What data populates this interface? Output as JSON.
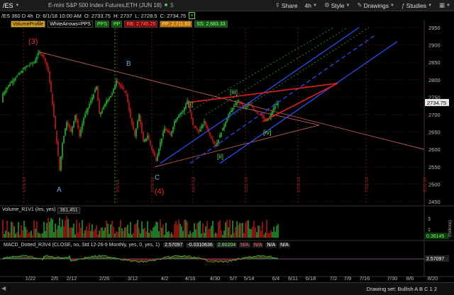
{
  "toolbar": {
    "symbol": "/ES",
    "description": "E-mini S&P 500 Index Futures,ETH (JUN 18)",
    "share": "Share",
    "period": "4h",
    "style": "Style",
    "drawings": "Drawings",
    "studies": "Studies"
  },
  "infobar": {
    "chart_label": "/ES 360 D 4h",
    "date": "D: 6/1/18 10:00 AM",
    "open": "O: 2733.75",
    "high": "H: 2737",
    "low": "L: 2728.5",
    "close": "C: 2734.75"
  },
  "tags": [
    {
      "text": "VolumeProfile",
      "bg": "#d4a017",
      "fg": "#000"
    },
    {
      "text": "WhiteArrows=PPS",
      "bg": "#000",
      "fg": "#ffffff"
    },
    {
      "text": "PPS",
      "bg": "#0a5a0a",
      "fg": "#7cfc7c"
    },
    {
      "text": "PP",
      "bg": "#0a5a0a",
      "fg": "#7cfc7c"
    },
    {
      "text": "RB: 2,745.25",
      "bg": "#8a0000",
      "fg": "#ff8080"
    },
    {
      "text": "PP: 2,711.83",
      "bg": "#c07000",
      "fg": "#ffe0a0"
    },
    {
      "text": "SS: 2,683.33",
      "bg": "#0a5a0a",
      "fg": "#a0ffa0"
    }
  ],
  "wave_labels": [
    {
      "text": "(3)",
      "color": "#e03030"
    },
    {
      "text": "A",
      "color": "#6aa8d8"
    },
    {
      "text": "B",
      "color": "#6aa8d8"
    },
    {
      "text": "C",
      "color": "#6aa8d8"
    },
    {
      "text": "(4)",
      "color": "#e03030"
    },
    {
      "text": "[i]",
      "color": "#5fd35f"
    },
    {
      "text": "[ii]",
      "color": "#5fd35f"
    },
    {
      "text": "[iii]",
      "color": "#5fd35f"
    },
    {
      "text": "[iv]",
      "color": "#5fd35f"
    }
  ],
  "price_axis": [
    "2950",
    "2900",
    "2850",
    "2800",
    "2750",
    "2700",
    "2650",
    "2600",
    "2550",
    "2500",
    "2450"
  ],
  "last_price": "2734.75",
  "vertical_date_labels": [
    "1/29/18",
    "3/1/18",
    "3/29/18",
    "4/27/18",
    "5/31/18",
    "6/29/18",
    "7/31/18",
    "8/31/18"
  ],
  "volume": {
    "label": "Volume_R1V1 (/es, yes)",
    "value": "361,451",
    "axis": [
      "3",
      "1"
    ],
    "side_label": "(millions)",
    "last": "0.36145"
  },
  "macd": [
    {
      "text": "MACD_Dotted_R3V4 (CLOSE, no, Std 12-26-9 Monthly, yes, 0, yes, 1)",
      "fg": "#ddd",
      "bg": "#000"
    },
    {
      "text": "2.57097",
      "fg": "#fff",
      "bg": "#222"
    },
    {
      "text": "-0.0310636",
      "fg": "#fff",
      "bg": "#222"
    },
    {
      "text": "2.60204",
      "fg": "#7cfc7c",
      "bg": "#222"
    },
    {
      "text": "N/A",
      "fg": "#ff6060",
      "bg": "#222"
    },
    {
      "text": "N/A",
      "fg": "#ff6060",
      "bg": "#222"
    },
    {
      "text": "N/A",
      "fg": "#fff",
      "bg": "#222"
    },
    {
      "text": "N/A",
      "fg": "#fff",
      "bg": "#222"
    }
  ],
  "macd_last": "2.57097",
  "x_axis": [
    "1/22",
    "2/5",
    "2/12",
    "2/26",
    "3/12",
    "4/2",
    "4/16",
    "4/30",
    "5/7",
    "5/14",
    "6/4",
    "6/11",
    "6/18",
    "7/2",
    "7/9",
    "7/16",
    "7/30",
    "8/6",
    "8/20"
  ],
  "drawing_set": "Drawing set: Bullish A B C 1 2"
}
